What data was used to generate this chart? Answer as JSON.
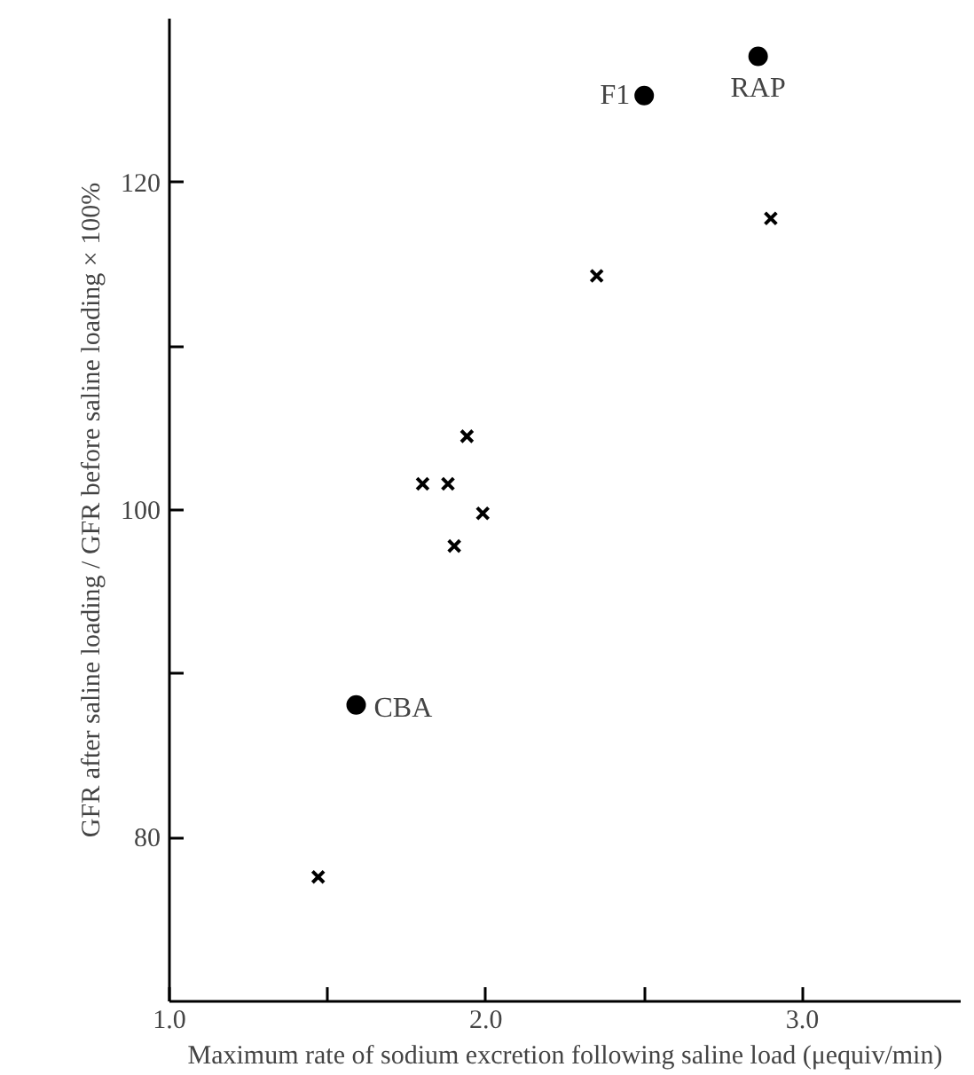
{
  "chart_data": {
    "type": "scatter",
    "xlabel": "Maximum rate of sodium excretion following saline load (μequiv/min)",
    "ylabel": "GFR after saline loading / GFR before saline loading × 100%",
    "xlim": [
      1.0,
      3.5
    ],
    "ylim": [
      70,
      130
    ],
    "xticks": [
      {
        "value": 1.0,
        "label": "1.0"
      },
      {
        "value": 1.5,
        "label": null
      },
      {
        "value": 2.0,
        "label": "2.0"
      },
      {
        "value": 2.5,
        "label": null
      },
      {
        "value": 3.0,
        "label": "3.0"
      }
    ],
    "yticks": [
      80,
      {
        "value": 90,
        "label": null
      },
      100,
      {
        "value": 110,
        "label": null
      },
      120
    ],
    "grid": false,
    "series": [
      {
        "marker": "circle",
        "color": "#000000",
        "x": [
          1.59,
          2.5,
          2.86
        ],
        "values": [
          88.1,
          125.3,
          127.7
        ]
      },
      {
        "marker": "cross",
        "color": "#000000",
        "x": [
          1.47,
          1.8,
          1.88,
          1.94,
          1.99,
          1.9,
          2.35,
          2.9
        ],
        "values": [
          77.6,
          101.6,
          101.6,
          104.5,
          99.8,
          97.8,
          114.3,
          117.8
        ]
      }
    ],
    "annotations": [
      {
        "text": "CBA",
        "x": 1.59,
        "y": 88.1
      },
      {
        "text": "F1",
        "x": 2.5,
        "y": 125.3
      },
      {
        "text": "RAP",
        "x": 2.86,
        "y": 127.7
      }
    ]
  }
}
